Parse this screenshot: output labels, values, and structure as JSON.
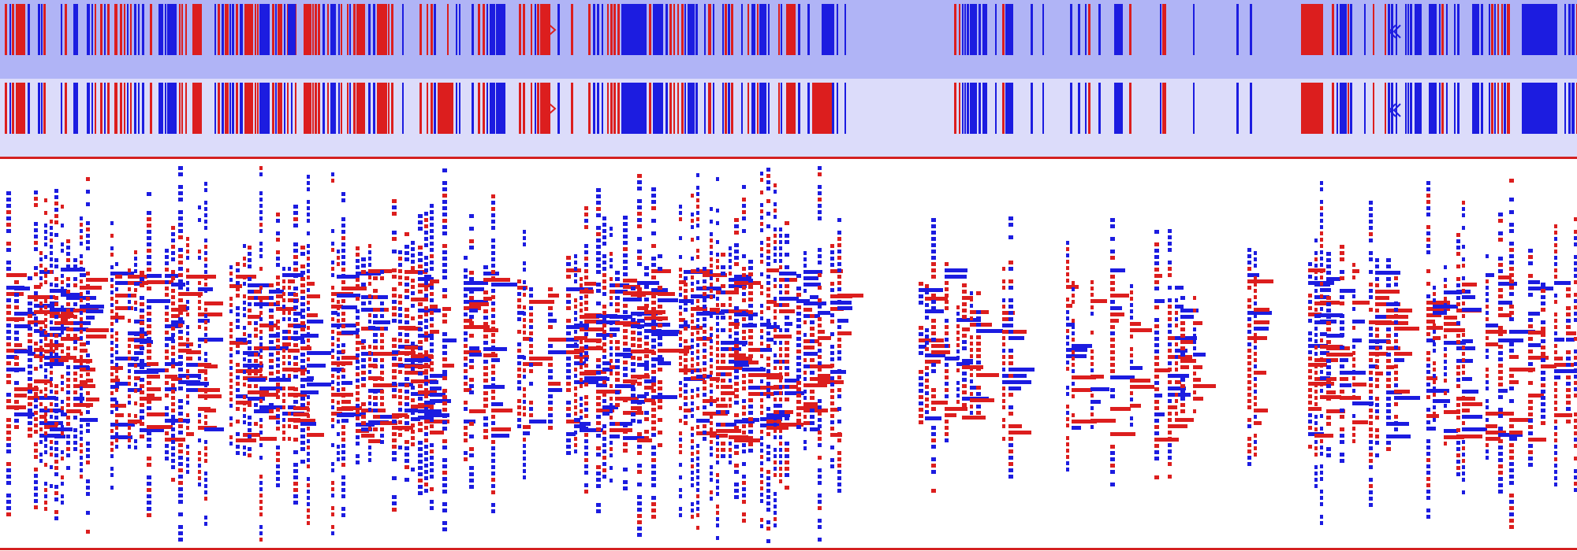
{
  "colors": {
    "forward_strand": "#1c1ce0",
    "reverse_strand": "#dc1e1e",
    "coverage_track_bg": "#b0b4f6",
    "alignment_track_bg": "#dcdcfa",
    "reads_bg": "#ffffff",
    "separator": "#d42020"
  },
  "tracks": [
    {
      "id": "coverage-track",
      "kind": "summary"
    },
    {
      "id": "alignment-track",
      "kind": "collapsed"
    },
    {
      "id": "reads-track",
      "kind": "expanded-pileup"
    }
  ],
  "icons": [
    "marker-chevron-icon",
    "marker-double-chevron-icon"
  ]
}
